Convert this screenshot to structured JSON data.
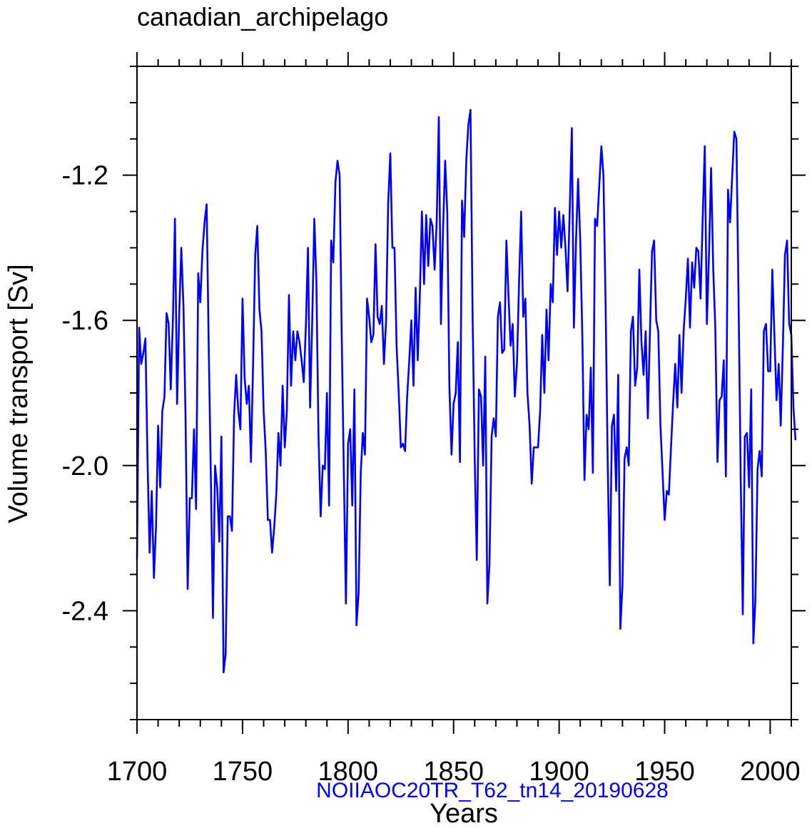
{
  "chart_data": {
    "type": "line",
    "title": "canadian_archipelago",
    "xlabel": "Years",
    "ylabel": "Volume transport [Sv]",
    "subtitle": "NOIIAOC20TR_T62_tn14_20190628",
    "xlim": [
      1700,
      2010
    ],
    "ylim": [
      -2.7,
      -0.9
    ],
    "xticks": [
      1700,
      1750,
      1800,
      1850,
      1900,
      1950,
      2000
    ],
    "xtick_labels": [
      "1700",
      "1750",
      "1800",
      "1850",
      "1900",
      "1950",
      "2000"
    ],
    "yticks": [
      -2.4,
      -2.0,
      -1.6,
      -1.2
    ],
    "ytick_labels": [
      "-2.4",
      "-2.0",
      "-1.6",
      "-1.2"
    ],
    "grid": false,
    "colors": {
      "line": "#0000ff",
      "subtitle": "#0000ff"
    },
    "series": [
      {
        "x_start": 1700,
        "x_step": 1,
        "values": [
          -2.26,
          -1.62,
          -1.72,
          -1.69,
          -1.65,
          -1.99,
          -2.24,
          -2.07,
          -2.31,
          -2.17,
          -1.89,
          -2.06,
          -1.85,
          -1.81,
          -1.58,
          -1.61,
          -1.79,
          -1.6,
          -1.32,
          -1.83,
          -1.58,
          -1.4,
          -1.56,
          -1.86,
          -2.34,
          -2.09,
          -2.09,
          -1.9,
          -2.12,
          -1.47,
          -1.55,
          -1.41,
          -1.33,
          -1.28,
          -1.68,
          -2.03,
          -2.42,
          -2.0,
          -2.06,
          -2.21,
          -1.92,
          -2.57,
          -2.52,
          -2.14,
          -2.14,
          -2.18,
          -1.86,
          -1.75,
          -1.85,
          -1.9,
          -1.54,
          -1.76,
          -1.83,
          -1.78,
          -1.99,
          -1.72,
          -1.42,
          -1.34,
          -1.57,
          -1.63,
          -1.85,
          -1.96,
          -2.15,
          -2.15,
          -2.24,
          -2.17,
          -2.08,
          -1.91,
          -2.0,
          -1.78,
          -1.95,
          -1.85,
          -1.53,
          -1.78,
          -1.63,
          -1.71,
          -1.63,
          -1.66,
          -1.71,
          -1.77,
          -1.62,
          -1.4,
          -1.84,
          -1.61,
          -1.32,
          -1.49,
          -1.92,
          -2.14,
          -2.0,
          -2.01,
          -1.8,
          -2.11,
          -1.38,
          -1.44,
          -1.22,
          -1.16,
          -1.2,
          -1.64,
          -2.02,
          -2.38,
          -1.94,
          -1.9,
          -2.11,
          -1.79,
          -2.44,
          -2.35,
          -2.02,
          -1.91,
          -1.97,
          -1.54,
          -1.59,
          -1.66,
          -1.64,
          -1.39,
          -1.59,
          -1.61,
          -1.56,
          -1.72,
          -1.6,
          -1.28,
          -1.14,
          -1.4,
          -1.4,
          -1.67,
          -1.8,
          -1.95,
          -1.94,
          -1.96,
          -1.81,
          -1.71,
          -1.6,
          -1.78,
          -1.51,
          -1.71,
          -1.53,
          -1.3,
          -1.5,
          -1.31,
          -1.45,
          -1.32,
          -1.34,
          -1.46,
          -1.33,
          -1.04,
          -1.61,
          -1.35,
          -1.16,
          -1.3,
          -1.78,
          -1.97,
          -1.83,
          -1.8,
          -1.66,
          -1.99,
          -1.27,
          -1.37,
          -1.16,
          -1.06,
          -1.02,
          -1.58,
          -1.98,
          -2.26,
          -1.79,
          -1.81,
          -2.0,
          -1.7,
          -2.38,
          -2.27,
          -1.92,
          -1.87,
          -1.92,
          -1.59,
          -1.55,
          -1.69,
          -1.68,
          -1.38,
          -1.53,
          -1.67,
          -1.61,
          -1.81,
          -1.72,
          -1.5,
          -1.3,
          -1.59,
          -1.54,
          -1.8,
          -1.89,
          -2.05,
          -1.95,
          -1.95,
          -1.95,
          -1.85,
          -1.64,
          -1.8,
          -1.57,
          -1.71,
          -1.5,
          -1.55,
          -1.29,
          -1.42,
          -1.3,
          -1.4,
          -1.31,
          -1.4,
          -1.52,
          -1.3,
          -1.07,
          -1.62,
          -1.38,
          -1.21,
          -1.38,
          -1.65,
          -2.04,
          -1.86,
          -1.9,
          -1.73,
          -2.02,
          -1.32,
          -1.34,
          -1.23,
          -1.12,
          -1.2,
          -1.55,
          -1.98,
          -2.33,
          -1.89,
          -1.86,
          -2.07,
          -1.75,
          -2.45,
          -2.33,
          -1.98,
          -1.95,
          -2.0,
          -1.63,
          -1.59,
          -1.78,
          -1.73,
          -1.46,
          -1.66,
          -1.75,
          -1.63,
          -1.87,
          -1.64,
          -1.41,
          -1.38,
          -1.6,
          -1.63,
          -1.89,
          -2.02,
          -2.15,
          -2.07,
          -2.08,
          -1.95,
          -1.83,
          -1.72,
          -1.84,
          -1.64,
          -1.8,
          -1.63,
          -1.54,
          -1.43,
          -1.62,
          -1.44,
          -1.51,
          -1.4,
          -1.41,
          -1.54,
          -1.32,
          -1.12,
          -1.61,
          -1.42,
          -1.18,
          -1.46,
          -1.62,
          -1.99,
          -1.82,
          -1.81,
          -1.71,
          -2.03,
          -1.24,
          -1.33,
          -1.2,
          -1.08,
          -1.1,
          -1.53,
          -2.02,
          -2.41,
          -1.92,
          -1.91,
          -2.06,
          -1.79,
          -2.49,
          -2.37,
          -2.01,
          -1.96,
          -2.03,
          -1.63,
          -1.61,
          -1.74,
          -1.74,
          -1.46,
          -1.64,
          -1.82,
          -1.72,
          -1.89,
          -1.67,
          -1.42,
          -1.38,
          -1.61,
          -1.64,
          -1.84,
          -1.93
        ]
      }
    ]
  }
}
